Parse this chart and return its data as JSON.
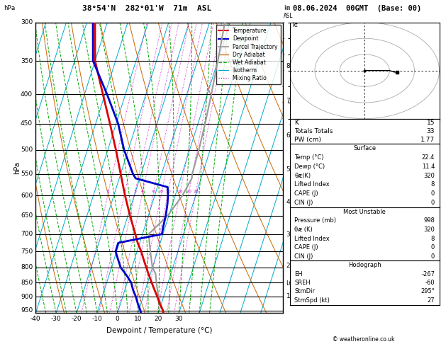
{
  "title_left": "38°54'N  282°01'W  71m  ASL",
  "title_right": "08.06.2024  00GMT  (Base: 00)",
  "xlabel": "Dewpoint / Temperature (°C)",
  "pmin": 300,
  "pmax": 960,
  "tmin": -40,
  "tmax": 36,
  "skew_deg": 45,
  "pressure_levels": [
    300,
    350,
    400,
    450,
    500,
    550,
    600,
    650,
    700,
    750,
    800,
    850,
    900,
    950
  ],
  "temp_p": [
    960,
    950,
    925,
    900,
    875,
    850,
    825,
    800,
    775,
    750,
    725,
    700,
    650,
    600,
    550,
    500,
    450,
    400,
    350,
    300
  ],
  "temp_t": [
    22.4,
    21.8,
    19.2,
    17.0,
    14.5,
    12.0,
    9.5,
    7.0,
    4.5,
    2.0,
    -1.0,
    -3.5,
    -9.0,
    -14.5,
    -20.0,
    -26.0,
    -33.0,
    -41.0,
    -50.0,
    -56.0
  ],
  "dewp_p": [
    960,
    950,
    925,
    900,
    875,
    850,
    825,
    800,
    775,
    750,
    725,
    700,
    680,
    650,
    620,
    600,
    580,
    560,
    550,
    500,
    450,
    400,
    350,
    300
  ],
  "dewp_t": [
    11.4,
    10.8,
    8.5,
    6.5,
    4.0,
    2.0,
    -1.5,
    -5.5,
    -8.0,
    -10.5,
    -10.5,
    9.5,
    9.0,
    8.5,
    7.5,
    6.5,
    5.0,
    -12.0,
    -14.0,
    -22.0,
    -29.0,
    -39.0,
    -51.0,
    -57.0
  ],
  "parcel_p": [
    960,
    950,
    900,
    853,
    820,
    800,
    750,
    700,
    680,
    650,
    600,
    560,
    550,
    500,
    450,
    400,
    350,
    300
  ],
  "parcel_t": [
    22.4,
    21.8,
    17.5,
    14.5,
    12.5,
    10.0,
    6.5,
    3.0,
    5.5,
    9.5,
    13.5,
    15.5,
    15.0,
    14.5,
    13.5,
    12.0,
    10.0,
    7.5
  ],
  "km_pressures": [
    898,
    795,
    701,
    616,
    540,
    472,
    411,
    357
  ],
  "km_values": [
    1,
    2,
    3,
    4,
    5,
    6,
    7,
    8
  ],
  "lcl_pressure": 853,
  "mixing_ratios": [
    1,
    2,
    3,
    4,
    6,
    8,
    10,
    15,
    20,
    25
  ],
  "mixing_ratio_label_p": 595,
  "K": 15,
  "TT": 33,
  "PW": 1.77,
  "sfc_temp": 22.4,
  "sfc_dewp": 11.4,
  "sfc_theta_e": 320,
  "sfc_li": 8,
  "sfc_cape": 0,
  "sfc_cin": 0,
  "mu_pres": 998,
  "mu_theta_e": 320,
  "mu_li": 8,
  "mu_cape": 0,
  "mu_cin": 0,
  "eh": -267,
  "sreh": -60,
  "stmdir": "295°",
  "stmspd": 27,
  "col_temp": "#dd0000",
  "col_dewp": "#0000cc",
  "col_parcel": "#999999",
  "col_dry": "#cc6600",
  "col_wet": "#00aa00",
  "col_iso": "#00aacc",
  "col_mr": "#cc00cc",
  "hodo_u": [
    0,
    3,
    5,
    8,
    10,
    12,
    13
  ],
  "hodo_v": [
    0,
    0,
    0,
    0,
    0,
    -1,
    -1
  ]
}
